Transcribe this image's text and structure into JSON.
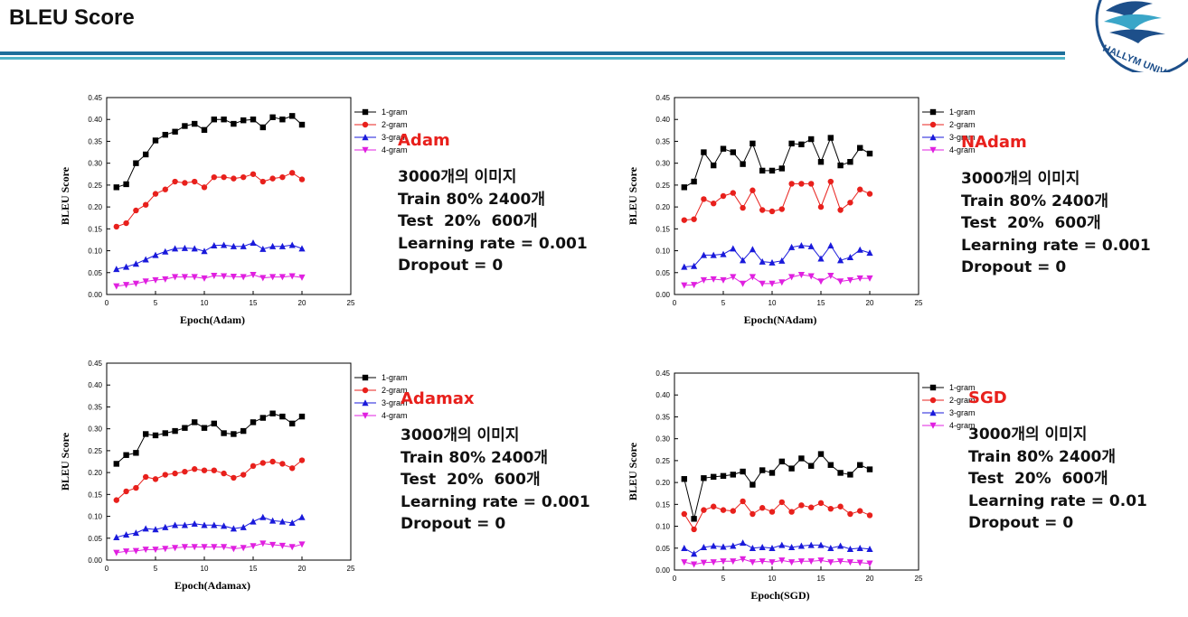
{
  "title": "BLEU Score",
  "logo_text": "HALLYM UNIV",
  "legend_markers": {
    "1-gram": "square",
    "2-gram": "circle",
    "3-gram": "triangle-up",
    "4-gram": "triangle-down"
  },
  "colors": {
    "1-gram": "#000000",
    "2-gram": "#e8201c",
    "3-gram": "#1a1adb",
    "4-gram": "#e020e0"
  },
  "panels": [
    {
      "optimizer": "Adam",
      "lines": [
        "3000개의 이미지",
        "Train 80% 2400개",
        "Test  20%  600개",
        "Learning rate = 0.001",
        "Dropout = 0"
      ]
    },
    {
      "optimizer": "NAdam",
      "lines": [
        "3000개의 이미지",
        "Train 80% 2400개",
        "Test  20%  600개",
        "Learning rate = 0.001",
        "Dropout = 0"
      ]
    },
    {
      "optimizer": "Adamax",
      "lines": [
        "3000개의 이미지",
        "Train 80% 2400개",
        "Test  20%  600개",
        "Learning rate = 0.001",
        "Dropout = 0"
      ]
    },
    {
      "optimizer": "SGD",
      "lines": [
        "3000개의 이미지",
        "Train 80% 2400개",
        "Test  20%  600개",
        "Learning rate = 0.01",
        "Dropout = 0"
      ]
    }
  ],
  "chart_data": [
    {
      "type": "line",
      "xlabel": "Epoch(Adam)",
      "ylabel": "BLEU Score",
      "xlim": [
        0,
        25
      ],
      "ylim": [
        0,
        0.45
      ],
      "xticks": [
        "0",
        "5",
        "10",
        "15",
        "20",
        "25"
      ],
      "yticks": [
        "0.00",
        "0.05",
        "0.10",
        "0.15",
        "0.20",
        "0.25",
        "0.30",
        "0.35",
        "0.40",
        "0.45"
      ],
      "x": [
        1,
        2,
        3,
        4,
        5,
        6,
        7,
        8,
        9,
        10,
        11,
        12,
        13,
        14,
        15,
        16,
        17,
        18,
        19,
        20
      ],
      "series": [
        {
          "name": "1-gram",
          "values": [
            0.245,
            0.252,
            0.3,
            0.32,
            0.352,
            0.365,
            0.372,
            0.385,
            0.39,
            0.376,
            0.4,
            0.4,
            0.39,
            0.398,
            0.4,
            0.382,
            0.405,
            0.4,
            0.408,
            0.388
          ]
        },
        {
          "name": "2-gram",
          "values": [
            0.155,
            0.163,
            0.192,
            0.205,
            0.23,
            0.24,
            0.258,
            0.255,
            0.258,
            0.245,
            0.268,
            0.268,
            0.265,
            0.268,
            0.275,
            0.258,
            0.265,
            0.268,
            0.278,
            0.263
          ]
        },
        {
          "name": "3-gram",
          "values": [
            0.058,
            0.063,
            0.07,
            0.08,
            0.09,
            0.098,
            0.105,
            0.106,
            0.105,
            0.099,
            0.112,
            0.113,
            0.11,
            0.11,
            0.118,
            0.104,
            0.11,
            0.11,
            0.113,
            0.105
          ]
        },
        {
          "name": "4-gram",
          "values": [
            0.019,
            0.022,
            0.025,
            0.03,
            0.033,
            0.035,
            0.04,
            0.04,
            0.04,
            0.037,
            0.043,
            0.042,
            0.041,
            0.04,
            0.045,
            0.038,
            0.04,
            0.04,
            0.042,
            0.039
          ]
        }
      ]
    },
    {
      "type": "line",
      "xlabel": "Epoch(NAdam)",
      "ylabel": "BLEU Score",
      "xlim": [
        0,
        25
      ],
      "ylim": [
        0,
        0.45
      ],
      "xticks": [
        "0",
        "5",
        "10",
        "15",
        "20",
        "25"
      ],
      "yticks": [
        "0.00",
        "0.05",
        "0.10",
        "0.15",
        "0.20",
        "0.25",
        "0.30",
        "0.35",
        "0.40",
        "0.45"
      ],
      "x": [
        1,
        2,
        3,
        4,
        5,
        6,
        7,
        8,
        9,
        10,
        11,
        12,
        13,
        14,
        15,
        16,
        17,
        18,
        19,
        20
      ],
      "series": [
        {
          "name": "1-gram",
          "values": [
            0.245,
            0.258,
            0.325,
            0.295,
            0.333,
            0.325,
            0.298,
            0.345,
            0.283,
            0.283,
            0.288,
            0.345,
            0.343,
            0.355,
            0.303,
            0.358,
            0.295,
            0.303,
            0.335,
            0.322
          ]
        },
        {
          "name": "2-gram",
          "values": [
            0.17,
            0.172,
            0.218,
            0.208,
            0.225,
            0.232,
            0.198,
            0.238,
            0.193,
            0.19,
            0.195,
            0.253,
            0.253,
            0.253,
            0.2,
            0.258,
            0.193,
            0.21,
            0.24,
            0.23
          ]
        },
        {
          "name": "3-gram",
          "values": [
            0.063,
            0.065,
            0.09,
            0.09,
            0.092,
            0.105,
            0.078,
            0.103,
            0.075,
            0.073,
            0.077,
            0.108,
            0.112,
            0.11,
            0.082,
            0.112,
            0.078,
            0.085,
            0.102,
            0.095
          ]
        },
        {
          "name": "4-gram",
          "values": [
            0.021,
            0.022,
            0.033,
            0.035,
            0.033,
            0.04,
            0.025,
            0.04,
            0.025,
            0.025,
            0.028,
            0.04,
            0.045,
            0.042,
            0.03,
            0.043,
            0.03,
            0.033,
            0.037,
            0.037
          ]
        }
      ]
    },
    {
      "type": "line",
      "xlabel": "Epoch(Adamax)",
      "ylabel": "BLEU Score",
      "xlim": [
        0,
        25
      ],
      "ylim": [
        0,
        0.45
      ],
      "xticks": [
        "0",
        "5",
        "10",
        "15",
        "20",
        "25"
      ],
      "yticks": [
        "0.00",
        "0.05",
        "0.10",
        "0.15",
        "0.20",
        "0.25",
        "0.30",
        "0.35",
        "0.40",
        "0.45"
      ],
      "x": [
        1,
        2,
        3,
        4,
        5,
        6,
        7,
        8,
        9,
        10,
        11,
        12,
        13,
        14,
        15,
        16,
        17,
        18,
        19,
        20
      ],
      "series": [
        {
          "name": "1-gram",
          "values": [
            0.22,
            0.24,
            0.245,
            0.288,
            0.285,
            0.29,
            0.295,
            0.302,
            0.315,
            0.302,
            0.312,
            0.29,
            0.288,
            0.295,
            0.315,
            0.325,
            0.335,
            0.328,
            0.312,
            0.328
          ]
        },
        {
          "name": "2-gram",
          "values": [
            0.137,
            0.157,
            0.165,
            0.19,
            0.185,
            0.195,
            0.198,
            0.202,
            0.208,
            0.205,
            0.205,
            0.198,
            0.188,
            0.195,
            0.215,
            0.222,
            0.225,
            0.22,
            0.21,
            0.228
          ]
        },
        {
          "name": "3-gram",
          "values": [
            0.052,
            0.058,
            0.062,
            0.072,
            0.07,
            0.075,
            0.08,
            0.08,
            0.083,
            0.08,
            0.08,
            0.078,
            0.072,
            0.075,
            0.088,
            0.098,
            0.09,
            0.088,
            0.085,
            0.098
          ]
        },
        {
          "name": "4-gram",
          "values": [
            0.017,
            0.02,
            0.021,
            0.024,
            0.024,
            0.026,
            0.028,
            0.03,
            0.03,
            0.03,
            0.03,
            0.03,
            0.026,
            0.028,
            0.032,
            0.038,
            0.035,
            0.033,
            0.03,
            0.036
          ]
        }
      ]
    },
    {
      "type": "line",
      "xlabel": "Epoch(SGD)",
      "ylabel": "BLEU Score",
      "xlim": [
        0,
        25
      ],
      "ylim": [
        0,
        0.45
      ],
      "xticks": [
        "0",
        "5",
        "10",
        "15",
        "20",
        "25"
      ],
      "yticks": [
        "0.00",
        "0.05",
        "0.10",
        "0.15",
        "0.20",
        "0.25",
        "0.30",
        "0.35",
        "0.40",
        "0.45"
      ],
      "x": [
        1,
        2,
        3,
        4,
        5,
        6,
        7,
        8,
        9,
        10,
        11,
        12,
        13,
        14,
        15,
        16,
        17,
        18,
        19,
        20
      ],
      "series": [
        {
          "name": "1-gram",
          "values": [
            0.208,
            0.117,
            0.21,
            0.213,
            0.215,
            0.218,
            0.225,
            0.195,
            0.228,
            0.222,
            0.248,
            0.232,
            0.255,
            0.238,
            0.265,
            0.24,
            0.222,
            0.218,
            0.24,
            0.23
          ]
        },
        {
          "name": "2-gram",
          "values": [
            0.128,
            0.093,
            0.137,
            0.145,
            0.137,
            0.135,
            0.157,
            0.128,
            0.142,
            0.133,
            0.155,
            0.133,
            0.148,
            0.143,
            0.153,
            0.14,
            0.145,
            0.128,
            0.135,
            0.125
          ]
        },
        {
          "name": "3-gram",
          "values": [
            0.05,
            0.037,
            0.052,
            0.055,
            0.053,
            0.055,
            0.062,
            0.05,
            0.052,
            0.05,
            0.057,
            0.052,
            0.055,
            0.057,
            0.057,
            0.05,
            0.055,
            0.048,
            0.05,
            0.048
          ]
        },
        {
          "name": "4-gram",
          "values": [
            0.018,
            0.013,
            0.017,
            0.018,
            0.02,
            0.02,
            0.025,
            0.018,
            0.02,
            0.018,
            0.022,
            0.018,
            0.02,
            0.02,
            0.022,
            0.018,
            0.02,
            0.018,
            0.017,
            0.015
          ]
        }
      ]
    }
  ]
}
